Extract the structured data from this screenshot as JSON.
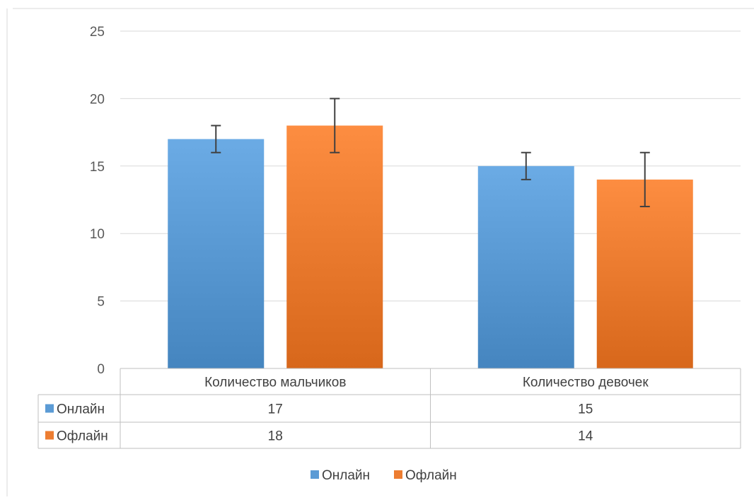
{
  "chart_data": {
    "type": "bar",
    "categories": [
      "Количество мальчиков",
      "Количество девочек"
    ],
    "series": [
      {
        "name": "Онлайн",
        "color": "#5B9BD5",
        "values": [
          17,
          15
        ],
        "error_low": [
          16,
          14
        ],
        "error_high": [
          18,
          16
        ]
      },
      {
        "name": "Офлайн",
        "color": "#ED7D31",
        "values": [
          18,
          14
        ],
        "error_low": [
          16,
          12
        ],
        "error_high": [
          20,
          16
        ]
      }
    ],
    "ylim": [
      0,
      25
    ],
    "yticks": [
      0,
      5,
      10,
      15,
      20,
      25
    ],
    "grid": true,
    "data_table": true,
    "legend_position": "bottom"
  }
}
